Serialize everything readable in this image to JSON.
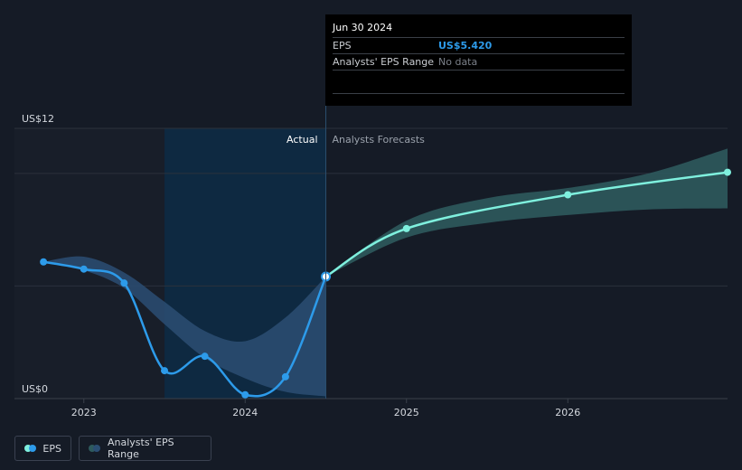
{
  "colors": {
    "background": "#151b26",
    "eps_line": "#2d9bea",
    "forecast_line": "#7ff0de",
    "forecast_band": "#2e5a5d",
    "actual_band": "#2b4e73",
    "highlight": "#0d2b47"
  },
  "tooltip": {
    "date": "Jun 30 2024",
    "rows": [
      {
        "label": "EPS",
        "value": "US$5.420",
        "color": "#2d9bea"
      },
      {
        "label": "Analysts' EPS Range",
        "value": "No data",
        "color": "#7b8089"
      }
    ]
  },
  "section_labels": {
    "actual": "Actual",
    "forecast": "Analysts Forecasts"
  },
  "legend": {
    "eps": "EPS",
    "range": "Analysts' EPS Range"
  },
  "chart_data": {
    "type": "line",
    "title": "",
    "xlabel": "",
    "ylabel": "",
    "ylim": [
      0,
      12
    ],
    "y_tick_labels": [
      {
        "value": 12,
        "label": "US$12"
      },
      {
        "value": 0,
        "label": "US$0"
      }
    ],
    "x_ticks": [
      {
        "year": 2023,
        "label": "2023"
      },
      {
        "year": 2024,
        "label": "2024"
      },
      {
        "year": 2025,
        "label": "2025"
      },
      {
        "year": 2026,
        "label": "2026"
      }
    ],
    "xlim": [
      2022.57,
      2026.99
    ],
    "grid": true,
    "actual_region": [
      2023.5,
      2024.5
    ],
    "series": [
      {
        "name": "EPS",
        "kind": "actual",
        "points": [
          {
            "x": 2022.75,
            "y": 6.07
          },
          {
            "x": 2023.0,
            "y": 5.75
          },
          {
            "x": 2023.25,
            "y": 5.13
          },
          {
            "x": 2023.5,
            "y": 1.24
          },
          {
            "x": 2023.75,
            "y": 1.88
          },
          {
            "x": 2024.0,
            "y": 0.17
          },
          {
            "x": 2024.25,
            "y": 0.97
          },
          {
            "x": 2024.5,
            "y": 5.42
          }
        ]
      },
      {
        "name": "EPS forecast",
        "kind": "forecast",
        "points": [
          {
            "x": 2024.5,
            "y": 5.42
          },
          {
            "x": 2025.0,
            "y": 7.55
          },
          {
            "x": 2026.0,
            "y": 9.05
          },
          {
            "x": 2026.99,
            "y": 10.05
          }
        ]
      }
    ],
    "actual_range_band": {
      "x": [
        2022.75,
        2023.0,
        2023.25,
        2023.5,
        2023.75,
        2024.0,
        2024.25,
        2024.5
      ],
      "low": [
        6.07,
        5.7,
        4.9,
        3.3,
        1.8,
        0.9,
        0.3,
        0.1
      ],
      "high": [
        6.07,
        6.3,
        5.6,
        4.3,
        3.0,
        2.55,
        3.6,
        5.42
      ]
    },
    "forecast_range_band": {
      "x": [
        2024.5,
        2025.0,
        2025.5,
        2026.0,
        2026.5,
        2026.99
      ],
      "low": [
        5.42,
        7.15,
        7.8,
        8.15,
        8.4,
        8.45
      ],
      "high": [
        5.42,
        7.9,
        8.9,
        9.35,
        10.0,
        11.1
      ]
    }
  }
}
